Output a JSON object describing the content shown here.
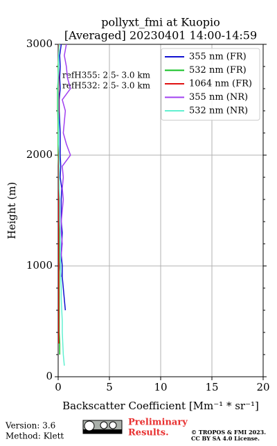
{
  "chart_data": {
    "type": "line",
    "title": [
      "pollyxt_fmi at Kuopio",
      "[Averaged] 20230401 14:00-14:59"
    ],
    "x_label": "Backscatter Coefficient [Mm⁻¹ * sr⁻¹]",
    "y_label": "Height (m)",
    "y": [
      100,
      200,
      300,
      400,
      500,
      600,
      700,
      800,
      900,
      1000,
      1100,
      1200,
      1300,
      1400,
      1500,
      1600,
      1700,
      1800,
      1900,
      2000,
      2100,
      2200,
      2300,
      2400,
      2500,
      2600,
      2700,
      2800,
      2900,
      3000
    ],
    "series": [
      {
        "name": "355 nm (FR)",
        "color": "#1010d0",
        "values": [
          null,
          null,
          null,
          null,
          null,
          0.7,
          0.6,
          0.5,
          0.4,
          0.4,
          0.3,
          0.35,
          0.4,
          0.3,
          0.3,
          0.3,
          0.35,
          0.2,
          0.25,
          0.2,
          0.2,
          0.2,
          0.15,
          0.1,
          0.1,
          0.2,
          0.15,
          0.2,
          0.15,
          0.3
        ]
      },
      {
        "name": "532 nm (FR)",
        "color": "#10c020",
        "values": [
          null,
          0.15,
          0.15,
          0.1,
          0.1,
          0.1,
          0.1,
          0.1,
          0.1,
          0.1,
          0.1,
          0.1,
          0.1,
          0.1,
          0.05,
          0.05,
          0.05,
          0.05,
          0.05,
          0.0,
          0.0,
          0.0,
          0.0,
          -0.05,
          -0.05,
          -0.05,
          0.0,
          0.0,
          0.05,
          0.1
        ]
      },
      {
        "name": "1064 nm (FR)",
        "color": "#e01010",
        "values": [
          null,
          null,
          0.05,
          0.05,
          0.05,
          0.05,
          0.05,
          0.05,
          0.05,
          0.05,
          0.05,
          0.05,
          0.05,
          0.05,
          0.05,
          0.05,
          0.05,
          0.05,
          0.05,
          0.05,
          0.05,
          0.05,
          0.05,
          0.05,
          0.05,
          0.05,
          0.05,
          0.05,
          0.05,
          0.05
        ]
      },
      {
        "name": "355 nm (NR)",
        "color": "#a040f0",
        "values": [
          null,
          null,
          null,
          null,
          null,
          null,
          null,
          null,
          0.3,
          0.2,
          0.3,
          0.4,
          0.3,
          0.3,
          0.4,
          0.5,
          0.4,
          0.5,
          0.4,
          1.2,
          0.8,
          0.5,
          0.6,
          0.7,
          0.4,
          1.2,
          0.9,
          0.8,
          0.6,
          0.8
        ]
      },
      {
        "name": "532 nm (NR)",
        "color": "#60f0d0",
        "values": [
          0.6,
          0.5,
          0.45,
          0.4,
          0.4,
          0.35,
          0.3,
          0.3,
          0.25,
          0.25,
          0.2,
          0.2,
          0.2,
          0.15,
          0.15,
          0.15,
          0.1,
          0.1,
          0.1,
          0.1,
          0.05,
          0.05,
          0.05,
          0.0,
          0.0,
          0.0,
          0.0,
          0.05,
          0.05,
          0.1
        ]
      }
    ],
    "xlim": [
      0,
      20
    ],
    "xticks": [
      0,
      5,
      10,
      15,
      20
    ],
    "ylim": [
      0,
      3000
    ],
    "yticks": [
      0,
      1000,
      2000,
      3000
    ],
    "grid": true,
    "legend": "upper right",
    "annotations": [
      "refH355:  2.5- 3.0 km",
      "refH532:  2.5- 3.0 km"
    ]
  },
  "footer": {
    "version": "Version: 3.6",
    "method": "Method: Klett",
    "preliminary": [
      "Preliminary",
      "Results."
    ],
    "copyright": [
      "© TROPOS & FMI 2023.",
      "CC BY SA 4.0 License."
    ]
  }
}
